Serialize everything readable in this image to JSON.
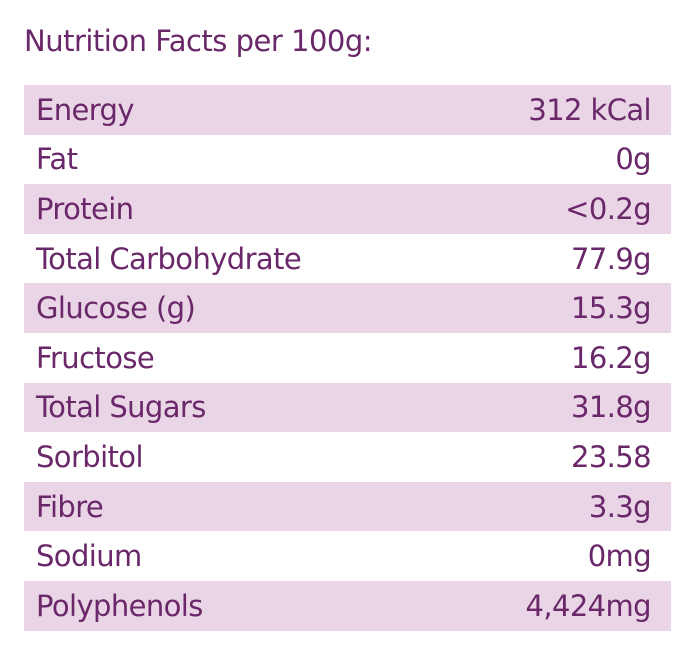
{
  "title": "Nutrition Facts per 100g:",
  "table": {
    "rows": [
      [
        "Energy",
        "312 kCal"
      ],
      [
        "Fat",
        "0g"
      ],
      [
        "Protein",
        "<0.2g"
      ],
      [
        "Total Carbohydrate",
        "77.9g"
      ],
      [
        "Glucose (g)",
        "15.3g"
      ],
      [
        "Fructose",
        "16.2g"
      ],
      [
        "Total Sugars",
        "31.8g"
      ],
      [
        "Sorbitol",
        "23.58"
      ],
      [
        "Fibre",
        "3.3g"
      ],
      [
        "Sodium",
        "0mg"
      ],
      [
        "Polyphenols",
        "4,424mg"
      ]
    ]
  }
}
